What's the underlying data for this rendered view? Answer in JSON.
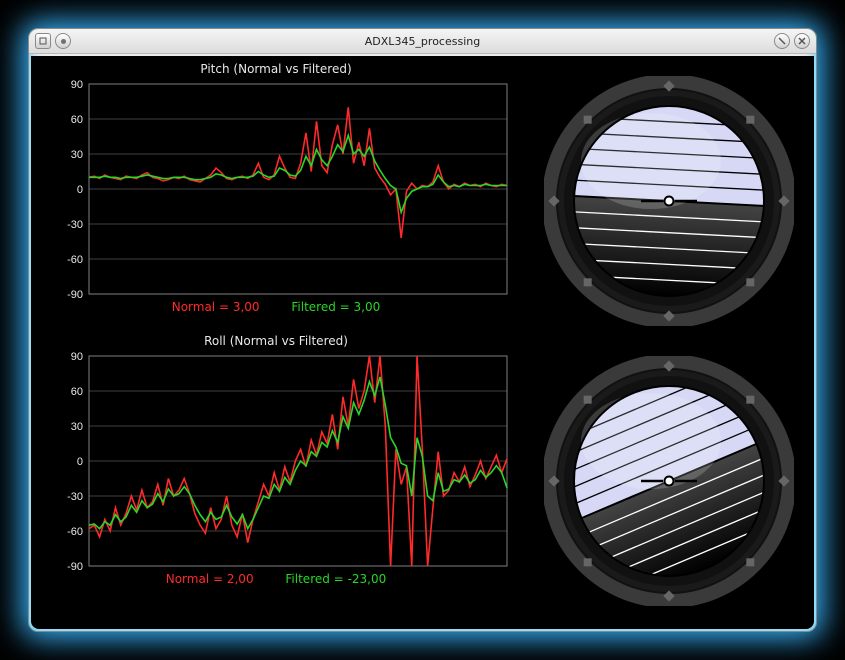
{
  "window": {
    "title": "ADXL345_processing"
  },
  "style": {
    "bg": "#000000",
    "grid": "#808080",
    "axis": "#e8e8e8",
    "series_normal_color": "#ff2a2a",
    "series_filtered_color": "#29d629",
    "line_width": 1.6,
    "tick_fontsize": 11,
    "title_fontsize": 12
  },
  "charts": {
    "pitch": {
      "title": "Pitch (Normal vs Filtered)",
      "ylim": [
        -90,
        90
      ],
      "ytick_step": 30,
      "readout": {
        "normal_label": "Normal =",
        "normal_val": "3,00",
        "filtered_label": "Filtered =",
        "filtered_val": "3,00"
      },
      "data": {
        "normal": [
          10,
          11,
          9,
          12,
          10,
          9,
          8,
          11,
          10,
          9,
          12,
          14,
          10,
          9,
          7,
          8,
          10,
          9,
          11,
          8,
          7,
          6,
          9,
          12,
          18,
          14,
          9,
          8,
          10,
          11,
          9,
          12,
          22,
          10,
          8,
          12,
          28,
          18,
          10,
          9,
          22,
          48,
          15,
          58,
          20,
          14,
          38,
          55,
          30,
          70,
          22,
          40,
          20,
          52,
          18,
          10,
          4,
          -5,
          0,
          -42,
          -2,
          5,
          0,
          3,
          2,
          6,
          20,
          6,
          0,
          4,
          2,
          5,
          3,
          4,
          2,
          5,
          3,
          2,
          4,
          3
        ],
        "filtered": [
          10,
          10,
          10,
          11,
          10,
          10,
          9,
          10,
          10,
          10,
          11,
          12,
          11,
          10,
          9,
          9,
          10,
          10,
          10,
          9,
          8,
          8,
          9,
          10,
          13,
          12,
          10,
          9,
          10,
          10,
          10,
          11,
          15,
          12,
          10,
          11,
          18,
          16,
          12,
          11,
          16,
          28,
          20,
          34,
          25,
          20,
          28,
          38,
          32,
          46,
          30,
          34,
          28,
          36,
          24,
          16,
          9,
          3,
          0,
          -20,
          -8,
          -2,
          0,
          2,
          2,
          4,
          12,
          6,
          2,
          3,
          2,
          4,
          3,
          3,
          3,
          4,
          3,
          3,
          3,
          3
        ]
      }
    },
    "roll": {
      "title": "Roll  (Normal vs Filtered)",
      "ylim": [
        -90,
        90
      ],
      "ytick_step": 30,
      "readout": {
        "normal_label": "Normal =",
        "normal_val": "2,00",
        "filtered_label": "Filtered =",
        "filtered_val": "-23,00"
      },
      "data": {
        "normal": [
          -58,
          -55,
          -65,
          -50,
          -60,
          -40,
          -55,
          -45,
          -30,
          -42,
          -25,
          -40,
          -35,
          -20,
          -38,
          -15,
          -30,
          -25,
          -15,
          -28,
          -45,
          -55,
          -62,
          -40,
          -58,
          -50,
          -30,
          -55,
          -65,
          -45,
          -70,
          -50,
          -35,
          -20,
          -30,
          -10,
          -25,
          -5,
          -18,
          0,
          10,
          -5,
          18,
          5,
          25,
          15,
          40,
          10,
          55,
          30,
          70,
          45,
          60,
          92,
          50,
          92,
          30,
          -92,
          10,
          -20,
          -5,
          -92,
          92,
          10,
          -92,
          -40,
          8,
          -30,
          -25,
          -10,
          -18,
          -5,
          -22,
          -12,
          0,
          -15,
          -5,
          5,
          -10,
          2
        ],
        "filtered": [
          -55,
          -54,
          -58,
          -52,
          -55,
          -46,
          -52,
          -48,
          -38,
          -44,
          -34,
          -40,
          -37,
          -28,
          -35,
          -24,
          -30,
          -28,
          -22,
          -28,
          -38,
          -46,
          -52,
          -44,
          -50,
          -48,
          -38,
          -48,
          -54,
          -46,
          -58,
          -50,
          -40,
          -30,
          -32,
          -20,
          -26,
          -14,
          -20,
          -8,
          0,
          -4,
          8,
          4,
          16,
          12,
          26,
          16,
          38,
          28,
          50,
          40,
          52,
          68,
          56,
          72,
          48,
          20,
          12,
          -2,
          -4,
          -30,
          20,
          4,
          -30,
          -34,
          -10,
          -26,
          -24,
          -16,
          -18,
          -12,
          -19,
          -16,
          -8,
          -14,
          -10,
          -4,
          -10,
          -23
        ]
      }
    }
  },
  "horizons": {
    "pitch_deg": 3,
    "roll_deg": -23
  }
}
